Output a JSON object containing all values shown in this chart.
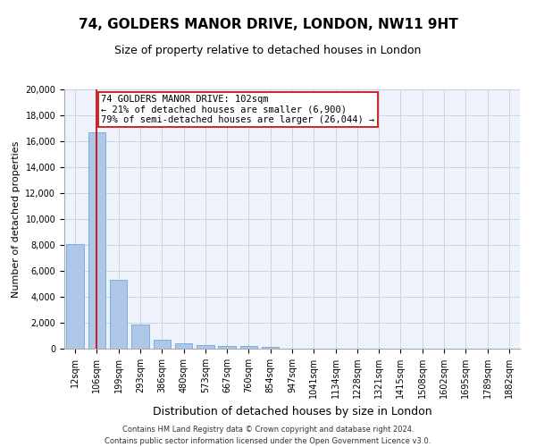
{
  "title": "74, GOLDERS MANOR DRIVE, LONDON, NW11 9HT",
  "subtitle": "Size of property relative to detached houses in London",
  "xlabel": "Distribution of detached houses by size in London",
  "ylabel": "Number of detached properties",
  "categories": [
    "12sqm",
    "106sqm",
    "199sqm",
    "293sqm",
    "386sqm",
    "480sqm",
    "573sqm",
    "667sqm",
    "760sqm",
    "854sqm",
    "947sqm",
    "1041sqm",
    "1134sqm",
    "1228sqm",
    "1321sqm",
    "1415sqm",
    "1508sqm",
    "1602sqm",
    "1695sqm",
    "1789sqm",
    "1882sqm"
  ],
  "values": [
    8100,
    16700,
    5300,
    1850,
    700,
    380,
    280,
    220,
    200,
    170,
    0,
    0,
    0,
    0,
    0,
    0,
    0,
    0,
    0,
    0,
    0
  ],
  "bar_color": "#aec6e8",
  "bar_edge_color": "#5a9fd4",
  "vline_x_index": 1,
  "vline_color": "#cc0000",
  "annotation_text": "74 GOLDERS MANOR DRIVE: 102sqm\n← 21% of detached houses are smaller (6,900)\n79% of semi-detached houses are larger (26,044) →",
  "annotation_box_color": "#ffffff",
  "annotation_box_edge_color": "#cc0000",
  "ylim": [
    0,
    20000
  ],
  "yticks": [
    0,
    2000,
    4000,
    6000,
    8000,
    10000,
    12000,
    14000,
    16000,
    18000,
    20000
  ],
  "grid_color": "#c8d4e8",
  "background_color": "#eef2fb",
  "footer_line1": "Contains HM Land Registry data © Crown copyright and database right 2024.",
  "footer_line2": "Contains public sector information licensed under the Open Government Licence v3.0.",
  "title_fontsize": 11,
  "subtitle_fontsize": 9,
  "ylabel_fontsize": 8,
  "xlabel_fontsize": 9,
  "tick_fontsize": 7,
  "annotation_fontsize": 7.5,
  "footer_fontsize": 6
}
